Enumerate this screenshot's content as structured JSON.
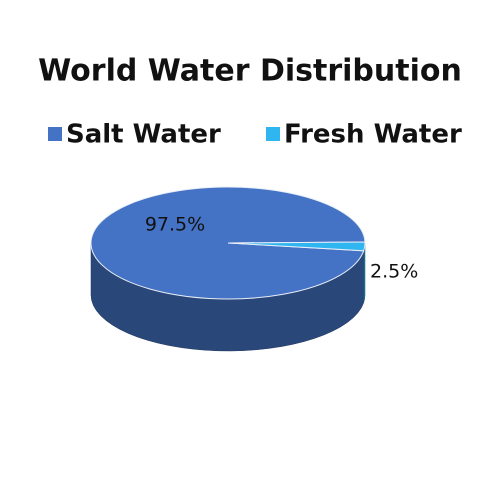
{
  "chart_data": {
    "type": "pie",
    "title": "World Water Distribution",
    "categories": [
      "Salt Water",
      "Fresh Water"
    ],
    "values": [
      97.5,
      2.5
    ],
    "value_labels": [
      "97.5%",
      "2.5%"
    ],
    "colors": [
      "#4472c4",
      "#2fb5f0"
    ]
  }
}
